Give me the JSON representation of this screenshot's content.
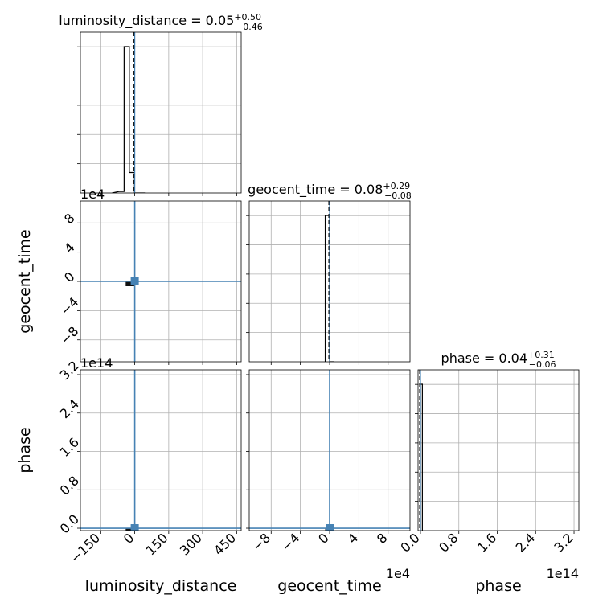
{
  "chart_data": {
    "type": "corner",
    "parameters": [
      "luminosity_distance",
      "geocent_time",
      "phase"
    ],
    "axis_labels": {
      "luminosity_distance": "luminosity_distance",
      "geocent_time": "geocent_time",
      "phase": "phase"
    },
    "diagonal_titles": [
      {
        "name": "luminosity_distance",
        "median": "0.05",
        "plus": "+0.50",
        "minus": "−0.46"
      },
      {
        "name": "geocent_time",
        "median": "0.08",
        "plus": "+0.29",
        "minus": "−0.08"
      },
      {
        "name": "phase",
        "median": "0.04",
        "plus": "+0.31",
        "minus": "−0.06"
      }
    ],
    "ranges": {
      "luminosity_distance": [
        -240,
        470
      ],
      "geocent_time": [
        -110000,
        110000
      ],
      "phase": [
        -5000000000000.0,
        330000000000000
      ]
    },
    "ticks": {
      "luminosity_distance": {
        "values": [
          -150,
          0,
          150,
          300,
          450
        ],
        "labels": [
          "−150",
          "0",
          "150",
          "300",
          "450"
        ]
      },
      "geocent_time": {
        "values": [
          -80000,
          -40000,
          0,
          40000,
          80000
        ],
        "labels": [
          "−8",
          "−4",
          "0",
          "4",
          "8"
        ],
        "offset": "1e4"
      },
      "phase": {
        "values": [
          0,
          80000000000000,
          160000000000000,
          240000000000000,
          320000000000000
        ],
        "labels": [
          "0.0",
          "0.8",
          "1.6",
          "2.4",
          "3.2"
        ],
        "offset": "1e14"
      }
    },
    "truths": {
      "luminosity_distance": 0,
      "geocent_time": 0,
      "phase": 0
    },
    "histograms": {
      "luminosity_distance": {
        "edges": [
          -70,
          -47,
          -24,
          -1,
          22,
          45
        ],
        "heights": [
          0.01,
          1.0,
          0.14,
          0.0,
          0.0
        ]
      },
      "geocent_time": {
        "edges": [
          -6000,
          0,
          6000
        ],
        "heights": [
          1.0,
          0.0
        ]
      },
      "phase": {
        "edges": [
          0,
          4000000000000
        ],
        "heights": [
          1.0
        ]
      }
    },
    "density_blobs": [
      {
        "pair": [
          "luminosity_distance",
          "geocent_time"
        ],
        "x": [
          -40,
          0
        ],
        "y": [
          -6000,
          0
        ]
      },
      {
        "pair": [
          "luminosity_distance",
          "phase"
        ],
        "x": [
          -40,
          0
        ],
        "y": [
          -1000000000000,
          0
        ]
      },
      {
        "pair": [
          "geocent_time",
          "phase"
        ],
        "x": [
          -6000,
          0
        ],
        "y": [
          -1000000000000,
          0
        ]
      }
    ],
    "grid": true,
    "colors": {
      "truth": "#4682b4",
      "histogram": "#000000",
      "grid": "#b0b0b0"
    }
  }
}
